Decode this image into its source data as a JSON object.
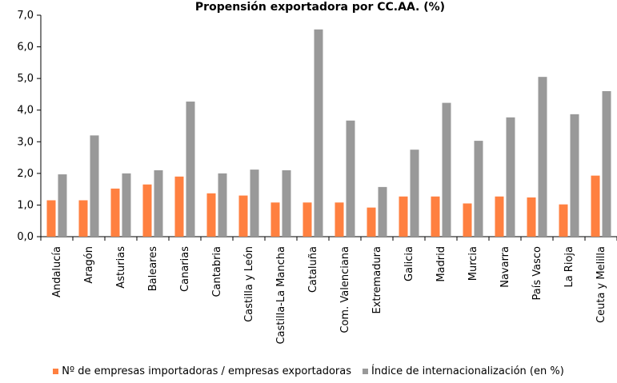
{
  "chart_data": {
    "type": "bar",
    "title": "Propensión exportadora por CC.AA. (%)",
    "categories": [
      "Andalucía",
      "Aragón",
      "Asturias",
      "Baleares",
      "Canarias",
      "Cantabria",
      "Castilla y León",
      "Castilla-La Mancha",
      "Cataluña",
      "Com. Valenciana",
      "Extremadura",
      "Galicia",
      "Madrid",
      "Murcia",
      "Navarra",
      "País Vasco",
      "La Rioja",
      "Ceuta y Melilla"
    ],
    "series": [
      {
        "name": "Nº de empresas importadoras / empresas exportadoras",
        "color": "#ff8040",
        "values": [
          1.15,
          1.15,
          1.52,
          1.65,
          1.9,
          1.37,
          1.3,
          1.08,
          1.08,
          1.08,
          0.92,
          1.27,
          1.27,
          1.05,
          1.27,
          1.24,
          1.02,
          1.93
        ]
      },
      {
        "name": "Índice de internacionalización (en %)",
        "color": "#999999",
        "values": [
          1.97,
          3.2,
          2.0,
          2.1,
          4.27,
          2.0,
          2.12,
          2.1,
          6.55,
          3.67,
          1.57,
          2.75,
          4.23,
          3.03,
          3.77,
          5.05,
          3.87,
          4.6
        ]
      }
    ],
    "ylim": [
      0,
      7
    ],
    "yticks": [
      "0,0",
      "1,0",
      "2,0",
      "3,0",
      "4,0",
      "5,0",
      "6,0",
      "7,0"
    ],
    "xlabel": "",
    "ylabel": "",
    "grid": false,
    "legend_position": "bottom"
  }
}
